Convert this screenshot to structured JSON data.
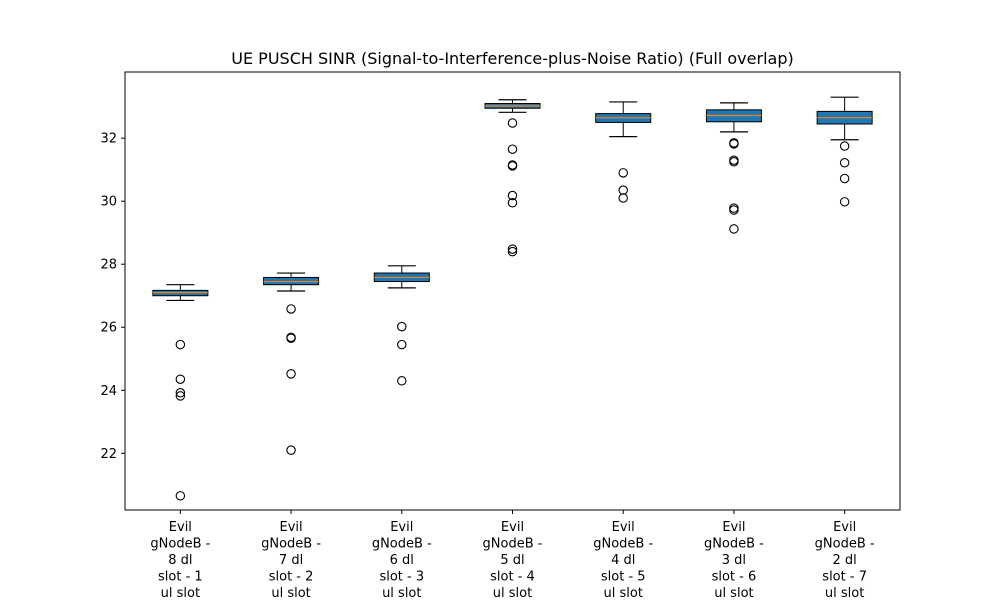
{
  "chart_data": {
    "type": "boxplot",
    "title": "UE PUSCH SINR (Signal-to-Interference-plus-Noise Ratio) (Full overlap)",
    "xlabel": "",
    "ylabel": "",
    "ylim": [
      20.2,
      34.1
    ],
    "yticks": [
      "22",
      "24",
      "26",
      "28",
      "30",
      "32"
    ],
    "ytick_values": [
      22,
      24,
      26,
      28,
      30,
      32
    ],
    "grid": false,
    "box_color": "#1f77b4",
    "median_color": "#ff7f0e",
    "categories": [
      [
        "Evil",
        "gNodeB -",
        "8 dl",
        "slot - 1",
        "ul slot"
      ],
      [
        "Evil",
        "gNodeB -",
        "7 dl",
        "slot - 2",
        "ul slot"
      ],
      [
        "Evil",
        "gNodeB -",
        "6 dl",
        "slot - 3",
        "ul slot"
      ],
      [
        "Evil",
        "gNodeB -",
        "5 dl",
        "slot - 4",
        "ul slot"
      ],
      [
        "Evil",
        "gNodeB -",
        "4 dl",
        "slot - 5",
        "ul slot"
      ],
      [
        "Evil",
        "gNodeB -",
        "3 dl",
        "slot - 6",
        "ul slot"
      ],
      [
        "Evil",
        "gNodeB -",
        "2 dl",
        "slot - 7",
        "ul slot"
      ]
    ],
    "boxes": [
      {
        "whisker_low": 26.85,
        "q1": 27.0,
        "median": 27.1,
        "q3": 27.17,
        "whisker_high": 27.35,
        "outliers": [
          25.45,
          24.35,
          23.92,
          23.82,
          20.65
        ]
      },
      {
        "whisker_low": 27.15,
        "q1": 27.35,
        "median": 27.45,
        "q3": 27.58,
        "whisker_high": 27.72,
        "outliers": [
          26.58,
          25.68,
          25.65,
          24.52,
          22.1
        ]
      },
      {
        "whisker_low": 27.25,
        "q1": 27.45,
        "median": 27.58,
        "q3": 27.72,
        "whisker_high": 27.95,
        "outliers": [
          26.02,
          25.45,
          24.3
        ]
      },
      {
        "whisker_low": 32.82,
        "q1": 32.95,
        "median": 33.02,
        "q3": 33.1,
        "whisker_high": 33.22,
        "outliers": [
          32.48,
          31.65,
          31.15,
          31.12,
          30.18,
          29.95,
          28.48,
          28.4
        ]
      },
      {
        "whisker_low": 32.05,
        "q1": 32.5,
        "median": 32.65,
        "q3": 32.78,
        "whisker_high": 33.15,
        "outliers": [
          30.9,
          30.35,
          30.1
        ]
      },
      {
        "whisker_low": 32.2,
        "q1": 32.52,
        "median": 32.72,
        "q3": 32.9,
        "whisker_high": 33.12,
        "outliers": [
          31.85,
          31.82,
          31.3,
          31.25,
          29.78,
          29.72,
          29.12
        ]
      },
      {
        "whisker_low": 31.95,
        "q1": 32.45,
        "median": 32.65,
        "q3": 32.85,
        "whisker_high": 33.3,
        "outliers": [
          31.75,
          31.22,
          30.72,
          29.98
        ]
      }
    ]
  }
}
